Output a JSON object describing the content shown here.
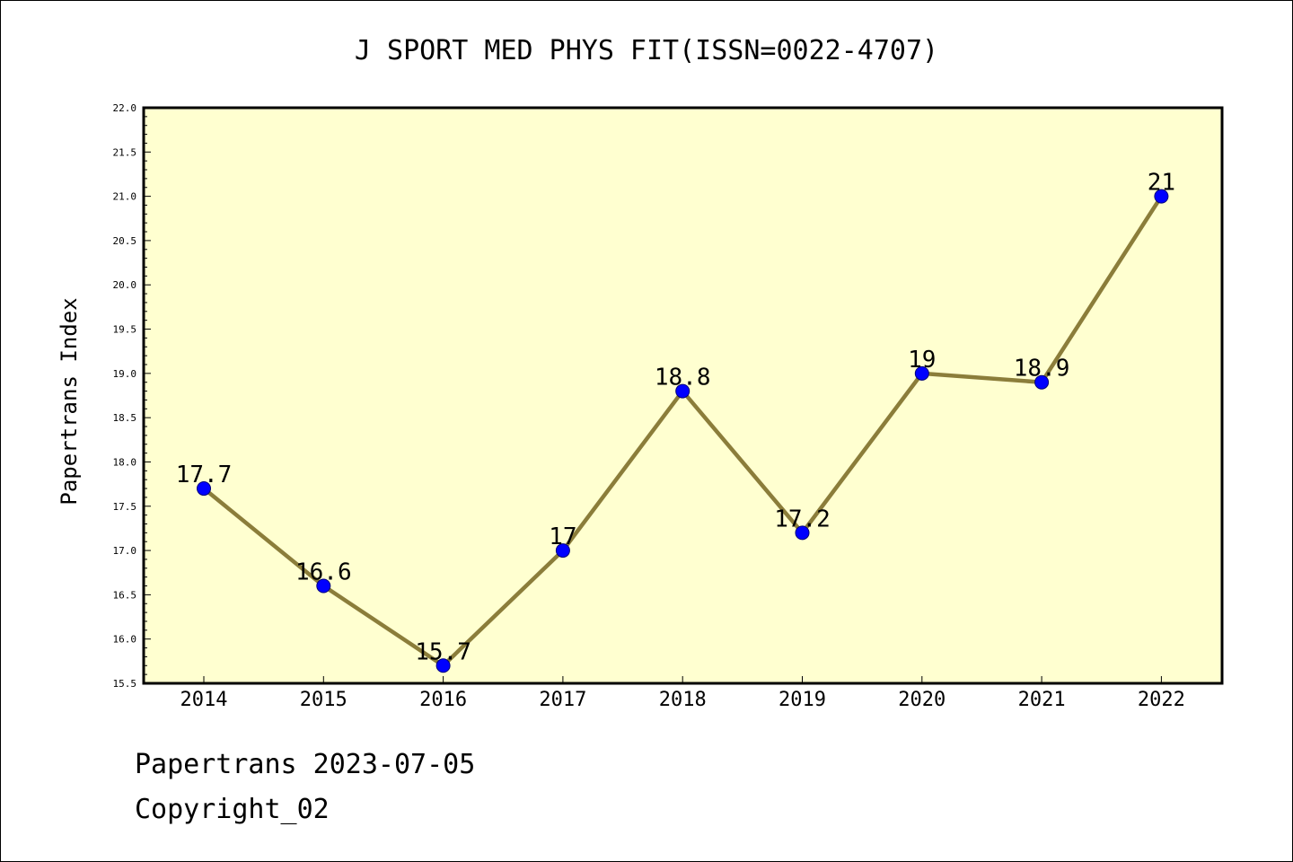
{
  "chart_data": {
    "type": "line",
    "title": "J SPORT MED PHYS FIT(ISSN=0022-4707)",
    "xlabel": "",
    "ylabel": "Papertrans Index",
    "categories": [
      "2014",
      "2015",
      "2016",
      "2017",
      "2018",
      "2019",
      "2020",
      "2021",
      "2022"
    ],
    "values": [
      17.7,
      16.6,
      15.7,
      17,
      18.8,
      17.2,
      19,
      18.9,
      21
    ],
    "data_labels": [
      "17.7",
      "16.6",
      "15.7",
      "17",
      "18.8",
      "17.2",
      "19",
      "18.9",
      "21"
    ],
    "ylim": [
      15.5,
      22.0
    ],
    "yticks": [
      "15.5",
      "16.0",
      "16.5",
      "17.0",
      "17.5",
      "18.0",
      "18.5",
      "19.0",
      "19.5",
      "20.0",
      "20.5",
      "21.0",
      "21.5",
      "22.0"
    ],
    "grid": false,
    "legend": "none",
    "colors": {
      "plot_background": "#ffffd0",
      "line": "#8b7d3a",
      "marker": "#0000ff",
      "axis": "#000000"
    }
  },
  "footer": {
    "date_line": "Papertrans 2023-07-05",
    "copyright": "Copyright_02"
  }
}
